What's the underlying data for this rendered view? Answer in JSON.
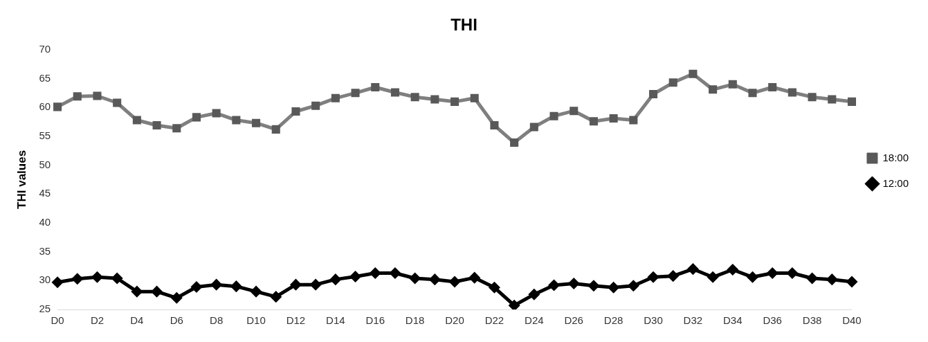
{
  "chart_data": {
    "type": "line",
    "title": "THI",
    "ylabel": "THI values",
    "categories": [
      "D0",
      null,
      "D2",
      null,
      "D4",
      null,
      "D6",
      null,
      "D8",
      null,
      "D10",
      null,
      "D12",
      null,
      "D14",
      null,
      "D16",
      null,
      "D18",
      null,
      "D20",
      null,
      "D22",
      null,
      "D24",
      null,
      "D26",
      null,
      "D28",
      null,
      "D30",
      null,
      "D32",
      null,
      "D34",
      null,
      "D36",
      null,
      "D38",
      null,
      "D40"
    ],
    "series": [
      {
        "name": "18:00",
        "color": "#7f7f7f",
        "marker": "square",
        "values": [
          60.1,
          61.9,
          62.0,
          60.8,
          57.8,
          56.9,
          56.4,
          58.3,
          59.0,
          57.8,
          57.3,
          56.2,
          59.3,
          60.3,
          61.6,
          62.5,
          63.5,
          62.6,
          61.8,
          61.4,
          61.0,
          61.6,
          56.9,
          53.9,
          56.6,
          58.5,
          59.4,
          57.6,
          58.1,
          57.8,
          62.3,
          64.3,
          65.8,
          63.1,
          64.0,
          62.5,
          63.5,
          62.6,
          61.8,
          61.4,
          61.0
        ]
      },
      {
        "name": "12:00",
        "color": "#000000",
        "marker": "diamond",
        "values": [
          29.7,
          30.3,
          30.6,
          30.4,
          28.1,
          28.1,
          27.0,
          28.9,
          29.3,
          29.0,
          28.1,
          27.2,
          29.3,
          29.3,
          30.2,
          30.7,
          31.3,
          31.3,
          30.4,
          30.2,
          29.8,
          30.5,
          28.8,
          25.7,
          27.6,
          29.2,
          29.5,
          29.1,
          28.8,
          29.1,
          30.6,
          30.8,
          32.0,
          30.6,
          31.9,
          30.6,
          31.3,
          31.3,
          30.4,
          30.2,
          29.8
        ]
      }
    ],
    "ylim": [
      25,
      70
    ],
    "yticks": [
      25,
      30,
      35,
      40,
      45,
      50,
      55,
      60,
      65,
      70
    ],
    "grid": false,
    "legend": "right",
    "line_style": "solid"
  }
}
